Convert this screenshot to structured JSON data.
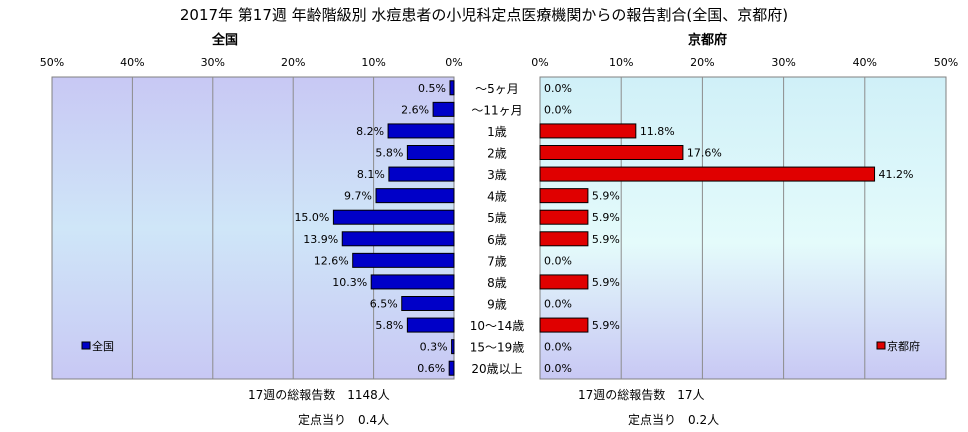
{
  "title": "2017年 第17週 年齢階級別 水痘患者の小児科定点医療機関からの報告割合(全国、京都府)",
  "colors": {
    "zenkoku": "#0000c8",
    "kyoto": "#e00000"
  },
  "chart_data": {
    "type": "bar",
    "orientation": "horizontal-back-to-back",
    "categories": [
      "～5ヶ月",
      "～11ヶ月",
      "1歳",
      "2歳",
      "3歳",
      "4歳",
      "5歳",
      "6歳",
      "7歳",
      "8歳",
      "9歳",
      "10～14歳",
      "15～19歳",
      "20歳以上"
    ],
    "ticks": [
      "50%",
      "40%",
      "30%",
      "20%",
      "10%",
      "0%"
    ],
    "right_ticks": [
      "0%",
      "10%",
      "20%",
      "30%",
      "40%",
      "50%"
    ],
    "xlim": [
      0,
      50
    ],
    "series": [
      {
        "name": "全国",
        "panel_title": "全国",
        "values": [
          0.5,
          2.6,
          8.2,
          5.8,
          8.1,
          9.7,
          15.0,
          13.9,
          12.6,
          10.3,
          6.5,
          5.8,
          0.3,
          0.6
        ],
        "labels": [
          "0.5%",
          "2.6%",
          "8.2%",
          "5.8%",
          "8.1%",
          "9.7%",
          "15.0%",
          "13.9%",
          "12.6%",
          "10.3%",
          "6.5%",
          "5.8%",
          "0.3%",
          "0.6%"
        ]
      },
      {
        "name": "京都府",
        "panel_title": "京都府",
        "values": [
          0.0,
          0.0,
          11.8,
          17.6,
          41.2,
          5.9,
          5.9,
          5.9,
          0.0,
          5.9,
          0.0,
          5.9,
          0.0,
          0.0
        ],
        "labels": [
          "0.0%",
          "0.0%",
          "11.8%",
          "17.6%",
          "41.2%",
          "5.9%",
          "5.9%",
          "5.9%",
          "0.0%",
          "5.9%",
          "0.0%",
          "5.9%",
          "0.0%",
          "0.0%"
        ]
      }
    ],
    "legend_placement": "bottom-left / bottom-right",
    "grid": true
  },
  "footer": {
    "left_total": "17週の総報告数　1148人",
    "left_per_site": "定点当り　0.4人",
    "right_total": "17週の総報告数　17人",
    "right_per_site": "定点当り　0.2人"
  }
}
